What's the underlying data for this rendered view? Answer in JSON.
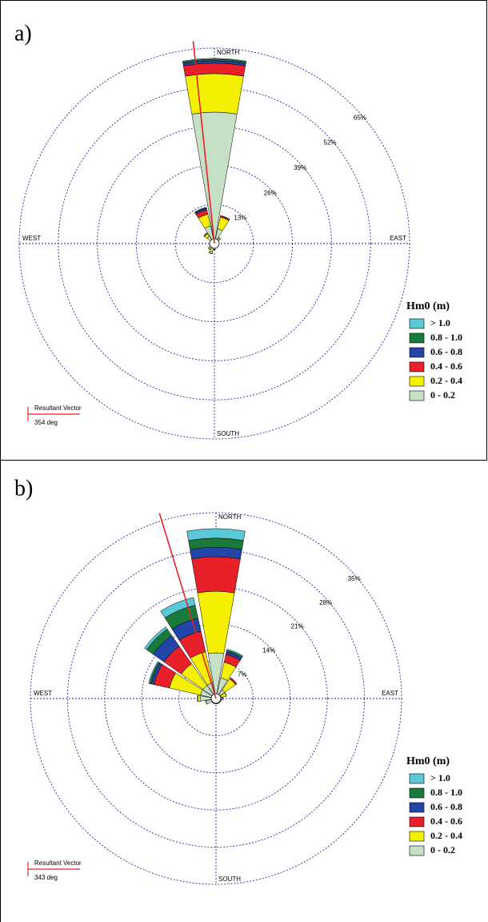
{
  "chart_data": [
    {
      "type": "windrose",
      "panel_label": "a)",
      "compass_labels": [
        "NORTH",
        "EAST",
        "SOUTH",
        "WEST"
      ],
      "rlim": [
        0,
        65
      ],
      "rticks": [
        {
          "value": 13,
          "label": "13%"
        },
        {
          "value": 26,
          "label": "26%"
        },
        {
          "value": 39,
          "label": "39%"
        },
        {
          "value": 52,
          "label": "52%"
        },
        {
          "value": 65,
          "label": "65%"
        }
      ],
      "legend_title": "Hm0 (m)",
      "series": [
        {
          "name": "> 1.0",
          "color": "#5bc8d8",
          "values": [
            0.3,
            0,
            0,
            0,
            0,
            0,
            0,
            0,
            0,
            0,
            0,
            0,
            0,
            0,
            0,
            0
          ]
        },
        {
          "name": "0.8 - 1.0",
          "color": "#1a7a3a",
          "values": [
            0.5,
            0,
            0,
            0,
            0,
            0,
            0,
            0,
            0,
            0,
            0,
            0,
            0,
            0,
            0,
            0.3
          ]
        },
        {
          "name": "0.6 - 0.8",
          "color": "#2445a8",
          "values": [
            0.8,
            0,
            0,
            0,
            0,
            0,
            0,
            0,
            0,
            0,
            0,
            0,
            0,
            0,
            0,
            0.5
          ]
        },
        {
          "name": "0.4 - 0.6",
          "color": "#e8202a",
          "values": [
            3.5,
            0.5,
            0,
            0,
            0,
            0,
            0,
            0,
            0,
            0,
            0,
            0,
            0,
            0,
            0.3,
            1.5
          ]
        },
        {
          "name": "0.2 - 0.4",
          "color": "#f5f000",
          "values": [
            12.8,
            4,
            0.5,
            0,
            0,
            0,
            0,
            0,
            0,
            0.5,
            0.5,
            0,
            0,
            0.5,
            1,
            4
          ]
        },
        {
          "name": "0 - 0.2",
          "color": "#c5e0c5",
          "values": [
            43.7,
            5,
            2,
            1,
            1,
            1,
            1,
            1,
            2,
            3,
            2,
            1,
            1,
            1,
            3,
            6
          ]
        }
      ],
      "vector_label": "Resultant Vector",
      "vector_direction": {
        "value": 354,
        "label": "354 deg"
      }
    },
    {
      "type": "windrose",
      "panel_label": "b)",
      "compass_labels": [
        "NORTH",
        "EAST",
        "SOUTH",
        "WEST"
      ],
      "rlim": [
        0,
        35
      ],
      "rticks": [
        {
          "value": 7,
          "label": "7%"
        },
        {
          "value": 14,
          "label": "14%"
        },
        {
          "value": 21,
          "label": "21%"
        },
        {
          "value": 28,
          "label": "28%"
        },
        {
          "value": 35,
          "label": "35%"
        }
      ],
      "legend_title": "Hm0 (m)",
      "series": [
        {
          "name": "> 1.0",
          "color": "#5bc8d8",
          "values": [
            1.8,
            0.2,
            0,
            0,
            0,
            0,
            0,
            0,
            0,
            0,
            0,
            0,
            0,
            0.2,
            0.5,
            1.5
          ]
        },
        {
          "name": "0.8 - 1.0",
          "color": "#1a7a3a",
          "values": [
            1.7,
            0.3,
            0,
            0,
            0,
            0,
            0,
            0,
            0,
            0,
            0,
            0,
            0,
            0.3,
            1.5,
            2.5
          ]
        },
        {
          "name": "0.6 - 0.8",
          "color": "#2445a8",
          "values": [
            1.8,
            0.5,
            0,
            0,
            0,
            0,
            0,
            0,
            0,
            0,
            0,
            0,
            0,
            0.5,
            2.5,
            2.5
          ]
        },
        {
          "name": "0.4 - 0.6",
          "color": "#e8202a",
          "values": [
            6.5,
            1.5,
            0.3,
            0,
            0,
            0,
            0,
            0,
            0,
            0,
            0,
            0,
            0,
            3,
            4,
            4
          ]
        },
        {
          "name": "0.2 - 0.4",
          "color": "#f5f000",
          "values": [
            11.6,
            3,
            2.5,
            1,
            0.3,
            0,
            0,
            0,
            0,
            0,
            0,
            0,
            0.5,
            6,
            5,
            6
          ]
        },
        {
          "name": "0 - 0.2",
          "color": "#c5e0c5",
          "values": [
            8.6,
            4,
            2,
            1,
            1,
            1,
            1,
            1,
            1,
            1,
            1,
            2,
            3,
            3,
            3,
            3
          ]
        }
      ],
      "vector_label": "Resultant Vector",
      "vector_direction": {
        "value": 343,
        "label": "343 deg"
      }
    }
  ]
}
